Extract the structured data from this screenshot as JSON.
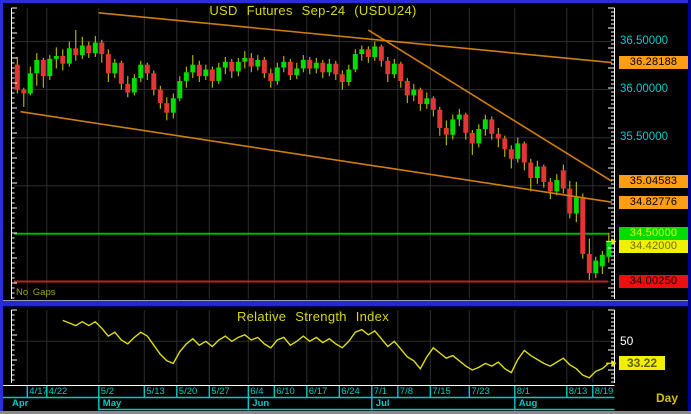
{
  "window": {
    "period_label": "Day"
  },
  "chart_data": [
    {
      "type": "candlestick",
      "title": "USD Futures Sep-24 (USDU24)",
      "annotation": "No Gaps",
      "ylim": [
        33.82,
        36.85
      ],
      "last_price": 34.42,
      "price_gridlines": [
        36.5,
        36.0,
        35.5,
        35.0,
        34.5,
        34.0
      ],
      "axis_price_labels": [
        {
          "price": 36.5,
          "text": "36.50000"
        },
        {
          "price": 36.0,
          "text": "36.00000"
        },
        {
          "price": 35.5,
          "text": "35.50000"
        },
        {
          "price": 35.0,
          "text": "35.00000"
        }
      ],
      "badges": [
        {
          "price": 36.28188,
          "text": "36.28188",
          "bg": "#ff9e14",
          "fg": "#000000"
        },
        {
          "price": 35.04583,
          "text": "35.04583",
          "bg": "#ff9e14",
          "fg": "#000000"
        },
        {
          "price": 34.82776,
          "text": "34.82776",
          "bg": "#ff9e14",
          "fg": "#000000"
        },
        {
          "price": 34.5,
          "text": "34.50000",
          "bg": "#00dc00",
          "fg": "#f0f000"
        },
        {
          "price": 34.42,
          "text": "34.42000",
          "bg": "#f0f000",
          "fg": "#6f6f00"
        },
        {
          "price": 34.0025,
          "text": "34.00250",
          "bg": "#ea1010",
          "fg": "#000000"
        }
      ],
      "hlines": [
        {
          "price": 34.5,
          "color": "#00b400"
        },
        {
          "price": 34.0025,
          "color": "#bb2222"
        }
      ],
      "trendlines": [
        {
          "i1": 12.5,
          "p1": 36.8,
          "i2": 91.5,
          "p2": 36.282
        },
        {
          "i1": 54.0,
          "p1": 36.62,
          "i2": 91.5,
          "p2": 35.046
        },
        {
          "i1": 0.5,
          "p1": 35.77,
          "i2": 91.5,
          "p2": 34.828
        }
      ],
      "x_ticks": [
        {
          "i": 2,
          "label": "4/17"
        },
        {
          "i": 5,
          "label": "4/22"
        },
        {
          "i": 13,
          "label": "5/2"
        },
        {
          "i": 20,
          "label": "5/13"
        },
        {
          "i": 25,
          "label": "5/20"
        },
        {
          "i": 30,
          "label": "5/27"
        },
        {
          "i": 36,
          "label": "6/4"
        },
        {
          "i": 40,
          "label": "6/10"
        },
        {
          "i": 45,
          "label": "6/17"
        },
        {
          "i": 50,
          "label": "6/24"
        },
        {
          "i": 55,
          "label": "7/1"
        },
        {
          "i": 59,
          "label": "7/8"
        },
        {
          "i": 64,
          "label": "7/15"
        },
        {
          "i": 70,
          "label": "7/23"
        },
        {
          "i": 77,
          "label": "8/1"
        },
        {
          "i": 85,
          "label": "8/13"
        },
        {
          "i": 89,
          "label": "8/19"
        }
      ],
      "month_ticks": [
        {
          "i": 0,
          "label": "Apr"
        },
        {
          "i": 13,
          "label": "May"
        },
        {
          "i": 36,
          "label": "Jun"
        },
        {
          "i": 55,
          "label": "Jul"
        },
        {
          "i": 77,
          "label": "Aug"
        }
      ],
      "colors": {
        "up": "#00dd00",
        "down": "#e43434",
        "wick": "#d2d200",
        "trendline": "#cf7d0e",
        "grid": "#2e2e2e",
        "axis_text": "#00cccc",
        "title": "#d6d616",
        "arrow": "#e8e800"
      },
      "ohlc": [
        [
          36.26,
          36.34,
          35.96,
          36.0
        ],
        [
          36.0,
          36.02,
          35.82,
          35.96
        ],
        [
          35.96,
          36.24,
          35.94,
          36.17
        ],
        [
          36.17,
          36.38,
          36.04,
          36.31
        ],
        [
          36.31,
          36.33,
          36.02,
          36.14
        ],
        [
          36.14,
          36.36,
          36.1,
          36.32
        ],
        [
          36.32,
          36.44,
          36.22,
          36.35
        ],
        [
          36.35,
          36.42,
          36.2,
          36.27
        ],
        [
          36.27,
          36.5,
          36.24,
          36.43
        ],
        [
          36.43,
          36.62,
          36.3,
          36.36
        ],
        [
          36.36,
          36.55,
          36.32,
          36.46
        ],
        [
          36.46,
          36.5,
          36.33,
          36.38
        ],
        [
          36.38,
          36.56,
          36.34,
          36.49
        ],
        [
          36.49,
          36.52,
          36.28,
          36.37
        ],
        [
          36.37,
          36.42,
          36.08,
          36.17
        ],
        [
          36.17,
          36.32,
          36.12,
          36.28
        ],
        [
          36.28,
          36.3,
          36.0,
          36.06
        ],
        [
          36.06,
          36.14,
          35.92,
          35.97
        ],
        [
          35.97,
          36.16,
          35.94,
          36.12
        ],
        [
          36.12,
          36.3,
          36.08,
          36.26
        ],
        [
          36.26,
          36.28,
          36.1,
          36.17
        ],
        [
          36.17,
          36.2,
          35.94,
          36.0
        ],
        [
          36.0,
          36.04,
          35.8,
          35.86
        ],
        [
          35.86,
          35.92,
          35.68,
          35.76
        ],
        [
          35.76,
          35.96,
          35.7,
          35.91
        ],
        [
          35.91,
          36.14,
          35.88,
          36.09
        ],
        [
          36.09,
          36.24,
          36.02,
          36.18
        ],
        [
          36.18,
          36.36,
          36.12,
          36.26
        ],
        [
          36.26,
          36.3,
          36.08,
          36.14
        ],
        [
          36.14,
          36.26,
          36.1,
          36.21
        ],
        [
          36.21,
          36.24,
          36.02,
          36.09
        ],
        [
          36.09,
          36.28,
          36.06,
          36.23
        ],
        [
          36.23,
          36.34,
          36.16,
          36.29
        ],
        [
          36.29,
          36.32,
          36.12,
          36.19
        ],
        [
          36.19,
          36.33,
          36.14,
          36.29
        ],
        [
          36.29,
          36.4,
          36.22,
          36.33
        ],
        [
          36.33,
          36.38,
          36.18,
          36.24
        ],
        [
          36.24,
          36.36,
          36.2,
          36.31
        ],
        [
          36.31,
          36.34,
          36.12,
          36.17
        ],
        [
          36.17,
          36.22,
          36.02,
          36.09
        ],
        [
          36.09,
          36.28,
          36.05,
          36.23
        ],
        [
          36.23,
          36.35,
          36.18,
          36.29
        ],
        [
          36.29,
          36.32,
          36.1,
          36.15
        ],
        [
          36.15,
          36.28,
          36.11,
          36.22
        ],
        [
          36.22,
          36.36,
          36.18,
          36.31
        ],
        [
          36.31,
          36.34,
          36.16,
          36.22
        ],
        [
          36.22,
          36.33,
          36.17,
          36.28
        ],
        [
          36.28,
          36.31,
          36.12,
          36.18
        ],
        [
          36.18,
          36.32,
          36.14,
          36.27
        ],
        [
          36.27,
          36.3,
          36.1,
          36.16
        ],
        [
          36.16,
          36.2,
          36.0,
          36.08
        ],
        [
          36.08,
          36.26,
          36.04,
          36.21
        ],
        [
          36.21,
          36.42,
          36.18,
          36.37
        ],
        [
          36.37,
          36.46,
          36.3,
          36.42
        ],
        [
          36.42,
          36.45,
          36.28,
          36.34
        ],
        [
          36.34,
          36.5,
          36.3,
          36.45
        ],
        [
          36.45,
          36.47,
          36.24,
          36.3
        ],
        [
          36.3,
          36.34,
          36.08,
          36.16
        ],
        [
          36.16,
          36.32,
          36.12,
          36.27
        ],
        [
          36.27,
          36.29,
          36.02,
          36.09
        ],
        [
          36.09,
          36.12,
          35.86,
          35.94
        ],
        [
          35.94,
          36.06,
          35.88,
          36.0
        ],
        [
          36.0,
          36.02,
          35.78,
          35.85
        ],
        [
          35.85,
          35.97,
          35.8,
          35.91
        ],
        [
          35.91,
          35.93,
          35.72,
          35.79
        ],
        [
          35.79,
          35.82,
          35.52,
          35.6
        ],
        [
          35.6,
          35.68,
          35.42,
          35.53
        ],
        [
          35.53,
          35.74,
          35.48,
          35.69
        ],
        [
          35.69,
          35.8,
          35.62,
          35.74
        ],
        [
          35.74,
          35.76,
          35.48,
          35.55
        ],
        [
          35.55,
          35.58,
          35.32,
          35.44
        ],
        [
          35.44,
          35.64,
          35.4,
          35.59
        ],
        [
          35.59,
          35.74,
          35.52,
          35.69
        ],
        [
          35.69,
          35.72,
          35.48,
          35.54
        ],
        [
          35.54,
          35.6,
          35.4,
          35.49
        ],
        [
          35.49,
          35.52,
          35.3,
          35.38
        ],
        [
          35.38,
          35.42,
          35.18,
          35.28
        ],
        [
          35.28,
          35.5,
          35.24,
          35.44
        ],
        [
          35.44,
          35.46,
          35.16,
          35.24
        ],
        [
          35.24,
          35.28,
          34.94,
          35.08
        ],
        [
          35.08,
          35.26,
          35.02,
          35.2
        ],
        [
          35.2,
          35.22,
          34.98,
          35.04
        ],
        [
          35.04,
          35.08,
          34.86,
          34.94
        ],
        [
          34.94,
          35.12,
          34.9,
          35.06
        ],
        [
          35.16,
          35.22,
          34.92,
          34.97
        ],
        [
          34.97,
          35.05,
          34.66,
          34.71
        ],
        [
          34.71,
          35.04,
          34.62,
          34.88
        ],
        [
          34.88,
          34.92,
          34.24,
          34.29
        ],
        [
          34.29,
          34.45,
          34.02,
          34.09
        ],
        [
          34.09,
          34.26,
          34.04,
          34.22
        ],
        [
          34.16,
          34.32,
          34.08,
          34.28
        ],
        [
          34.26,
          34.51,
          34.2,
          34.42
        ]
      ]
    },
    {
      "type": "line",
      "title": "Relative Strength Index",
      "ylim": [
        18,
        74
      ],
      "ref_level": {
        "value": 50,
        "label": "50"
      },
      "last_value": 33.22,
      "badge": {
        "text": "33.22",
        "bg": "#f0f000",
        "fg": "#5f5f00"
      },
      "color": "#dcdc14",
      "values": [
        null,
        null,
        null,
        null,
        null,
        null,
        null,
        66,
        64,
        62,
        65,
        62,
        65,
        60,
        54,
        57,
        51,
        48,
        53,
        57,
        54,
        47,
        40,
        35,
        33,
        42,
        48,
        52,
        47,
        50,
        46,
        51,
        54,
        50,
        53,
        55,
        51,
        53,
        48,
        45,
        51,
        53,
        47,
        50,
        54,
        50,
        53,
        49,
        52,
        48,
        45,
        50,
        57,
        59,
        55,
        58,
        52,
        46,
        50,
        44,
        38,
        35,
        29,
        38,
        45,
        41,
        37,
        39,
        35,
        31,
        28,
        30,
        33,
        31,
        34,
        29,
        26,
        36,
        43,
        39,
        36,
        33,
        31,
        34,
        37,
        32,
        29,
        24,
        22,
        27,
        29,
        33.22
      ]
    }
  ]
}
